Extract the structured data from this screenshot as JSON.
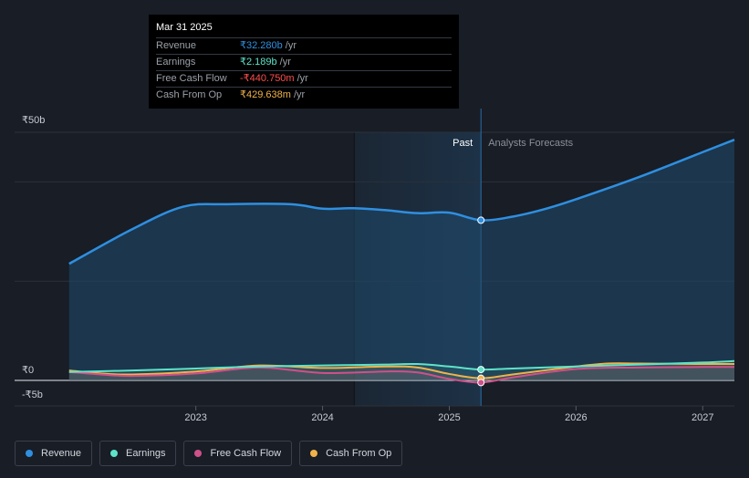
{
  "tooltip": {
    "date": "Mar 31 2025",
    "rows": [
      {
        "label": "Revenue",
        "value": "₹32.280b",
        "unit": "/yr",
        "color": "#2f8fe0"
      },
      {
        "label": "Earnings",
        "value": "₹2.189b",
        "unit": "/yr",
        "color": "#5ee3c8"
      },
      {
        "label": "Free Cash Flow",
        "value": "-₹440.750m",
        "unit": "/yr",
        "color": "#ff4d4d"
      },
      {
        "label": "Cash From Op",
        "value": "₹429.638m",
        "unit": "/yr",
        "color": "#f0b24a"
      }
    ]
  },
  "legend": [
    {
      "label": "Revenue",
      "color": "#2f8fe0"
    },
    {
      "label": "Earnings",
      "color": "#5ee3c8"
    },
    {
      "label": "Free Cash Flow",
      "color": "#d0508a"
    },
    {
      "label": "Cash From Op",
      "color": "#f0b24a"
    }
  ],
  "chart_data": {
    "type": "line",
    "title": "",
    "xlabel": "",
    "ylabel": "",
    "ylim": [
      -5,
      50
    ],
    "yticks": [
      {
        "value": 50,
        "label": "₹50b"
      },
      {
        "value": 0,
        "label": "₹0"
      },
      {
        "value": -5,
        "label": "-₹5b"
      }
    ],
    "xticks": [
      {
        "value": 2023,
        "label": "2023"
      },
      {
        "value": 2024,
        "label": "2024"
      },
      {
        "value": 2025,
        "label": "2025"
      },
      {
        "value": 2026,
        "label": "2026"
      },
      {
        "value": 2027,
        "label": "2027"
      }
    ],
    "xlim": [
      2021.8,
      2027.25
    ],
    "past_label": "Past",
    "forecast_label": "Analysts Forecasts",
    "past_region_start": 2024.25,
    "divider_x": 2025.25,
    "series": [
      {
        "name": "Revenue",
        "color": "#2f8fe0",
        "fill": true,
        "x": [
          2022.0,
          2022.5,
          2022.9,
          2023.25,
          2023.75,
          2024.0,
          2024.25,
          2024.5,
          2024.75,
          2025.0,
          2025.25,
          2025.5,
          2025.75,
          2026.0,
          2026.5,
          2027.0,
          2027.25
        ],
        "y": [
          23.5,
          30.5,
          35.0,
          35.5,
          35.5,
          34.6,
          34.7,
          34.3,
          33.7,
          33.8,
          32.28,
          33.0,
          34.5,
          36.5,
          41.0,
          46.0,
          48.5
        ]
      },
      {
        "name": "Earnings",
        "color": "#5ee3c8",
        "fill": false,
        "x": [
          2022.0,
          2022.5,
          2023.0,
          2023.5,
          2024.0,
          2024.5,
          2024.75,
          2025.0,
          2025.25,
          2025.5,
          2026.0,
          2026.5,
          2027.0,
          2027.25
        ],
        "y": [
          1.7,
          2.0,
          2.4,
          2.8,
          3.0,
          3.2,
          3.3,
          2.8,
          2.189,
          2.4,
          2.8,
          3.2,
          3.6,
          3.9
        ]
      },
      {
        "name": "Free Cash Flow",
        "color": "#d0508a",
        "fill": false,
        "x": [
          2022.0,
          2022.25,
          2022.5,
          2023.0,
          2023.5,
          2024.0,
          2024.5,
          2024.75,
          2025.0,
          2025.25,
          2025.5,
          2026.0,
          2026.5,
          2027.0,
          2027.25
        ],
        "y": [
          1.7,
          1.2,
          0.9,
          1.4,
          2.6,
          1.5,
          1.8,
          1.6,
          0.3,
          -0.44,
          0.6,
          2.3,
          2.6,
          2.7,
          2.7
        ]
      },
      {
        "name": "Cash From Op",
        "color": "#f0b24a",
        "fill": false,
        "x": [
          2022.0,
          2022.25,
          2022.5,
          2023.0,
          2023.5,
          2024.0,
          2024.5,
          2024.75,
          2025.0,
          2025.25,
          2025.5,
          2026.0,
          2026.25,
          2026.5,
          2027.0,
          2027.25
        ],
        "y": [
          2.0,
          1.4,
          1.2,
          1.8,
          3.0,
          2.5,
          2.8,
          2.6,
          1.3,
          0.43,
          1.2,
          2.8,
          3.4,
          3.4,
          3.3,
          3.3
        ]
      }
    ]
  }
}
